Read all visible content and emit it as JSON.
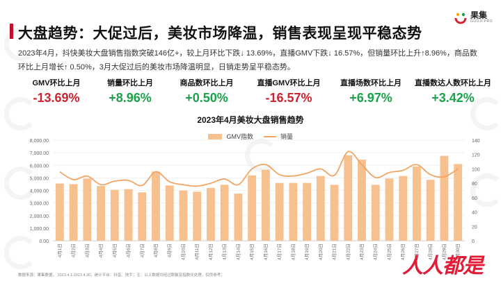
{
  "header": {
    "title": "大盘趋势：大促过后，美妆市场降温，销售表现呈现平稳态势",
    "brand_name": "果集",
    "brand_sub": "GUOJI.PRO"
  },
  "description": "2023年4月，抖快美妆大盘销售指数突破146亿+，较上月环比下跌↓ 13.69%，直播GMV下跌↓ 16.57%，但销量环比上升↑8.96%，商品数环比上月增长↑ 0.50%，3月大促过后的美妆市场降温明显，日销走势呈平稳态势。",
  "kpis": [
    {
      "label": "GMV环比上月",
      "value": "-13.69%",
      "trend": "neg"
    },
    {
      "label": "销量环比上月",
      "value": "+8.96%",
      "trend": "pos"
    },
    {
      "label": "商品数环比上月",
      "value": "+0.50%",
      "trend": "pos"
    },
    {
      "label": "直播GMV环比上月",
      "value": "-16.57%",
      "trend": "neg"
    },
    {
      "label": "直播场数环比上月",
      "value": "+6.97%",
      "trend": "pos"
    },
    {
      "label": "直播数达人数环比上月",
      "value": "+3.42%",
      "trend": "pos"
    }
  ],
  "footer": "数据来源：果集数据， 2023.4.1-2023.4.30，统计平台：抖音、快手；注：以上数据均经过脱敏及指数化处理，仅供参考；",
  "stamp": "人人都是",
  "colors": {
    "bar": "#f7c08f",
    "line": "#f0a565",
    "accent": "#c0102f",
    "negative": "#d0212f",
    "positive": "#19a24a"
  },
  "chart_data": {
    "type": "bar",
    "title": "2023年4月美妆大盘销售趋势",
    "categories": [
      "4月1日",
      "4月2日",
      "4月3日",
      "4月4日",
      "4月5日",
      "4月6日",
      "4月7日",
      "4月8日",
      "4月9日",
      "4月10日",
      "4月11日",
      "4月12日",
      "4月13日",
      "4月14日",
      "4月15日",
      "4月16日",
      "4月17日",
      "4月18日",
      "4月19日",
      "4月20日",
      "4月21日",
      "4月22日",
      "4月23日",
      "4月24日",
      "4月25日",
      "4月26日",
      "4月27日",
      "4月28日",
      "4月29日",
      "4月30日"
    ],
    "series": [
      {
        "name": "GMV指数",
        "type": "bar",
        "axis": "left",
        "values": [
          4550,
          4500,
          4950,
          4350,
          4050,
          4100,
          3850,
          5500,
          4400,
          4000,
          3900,
          4200,
          4450,
          3750,
          5200,
          5650,
          4600,
          4600,
          4600,
          5150,
          4450,
          6800,
          6450,
          4450,
          4950,
          5150,
          5900,
          4850,
          6750,
          6100
        ]
      },
      {
        "name": "销量",
        "type": "line",
        "axis": "right",
        "values": [
          96,
          85,
          90,
          78,
          83,
          84,
          77,
          96,
          82,
          78,
          76,
          80,
          86,
          78,
          100,
          106,
          92,
          90,
          94,
          100,
          91,
          124,
          106,
          88,
          95,
          98,
          106,
          92,
          89,
          100
        ]
      }
    ],
    "y_left": {
      "min": 0,
      "max": 8000,
      "step": 1000,
      "decimals": 2
    },
    "y_right": {
      "min": 0,
      "max": 140,
      "step": 20
    },
    "legend": "top-center",
    "grid": true
  }
}
